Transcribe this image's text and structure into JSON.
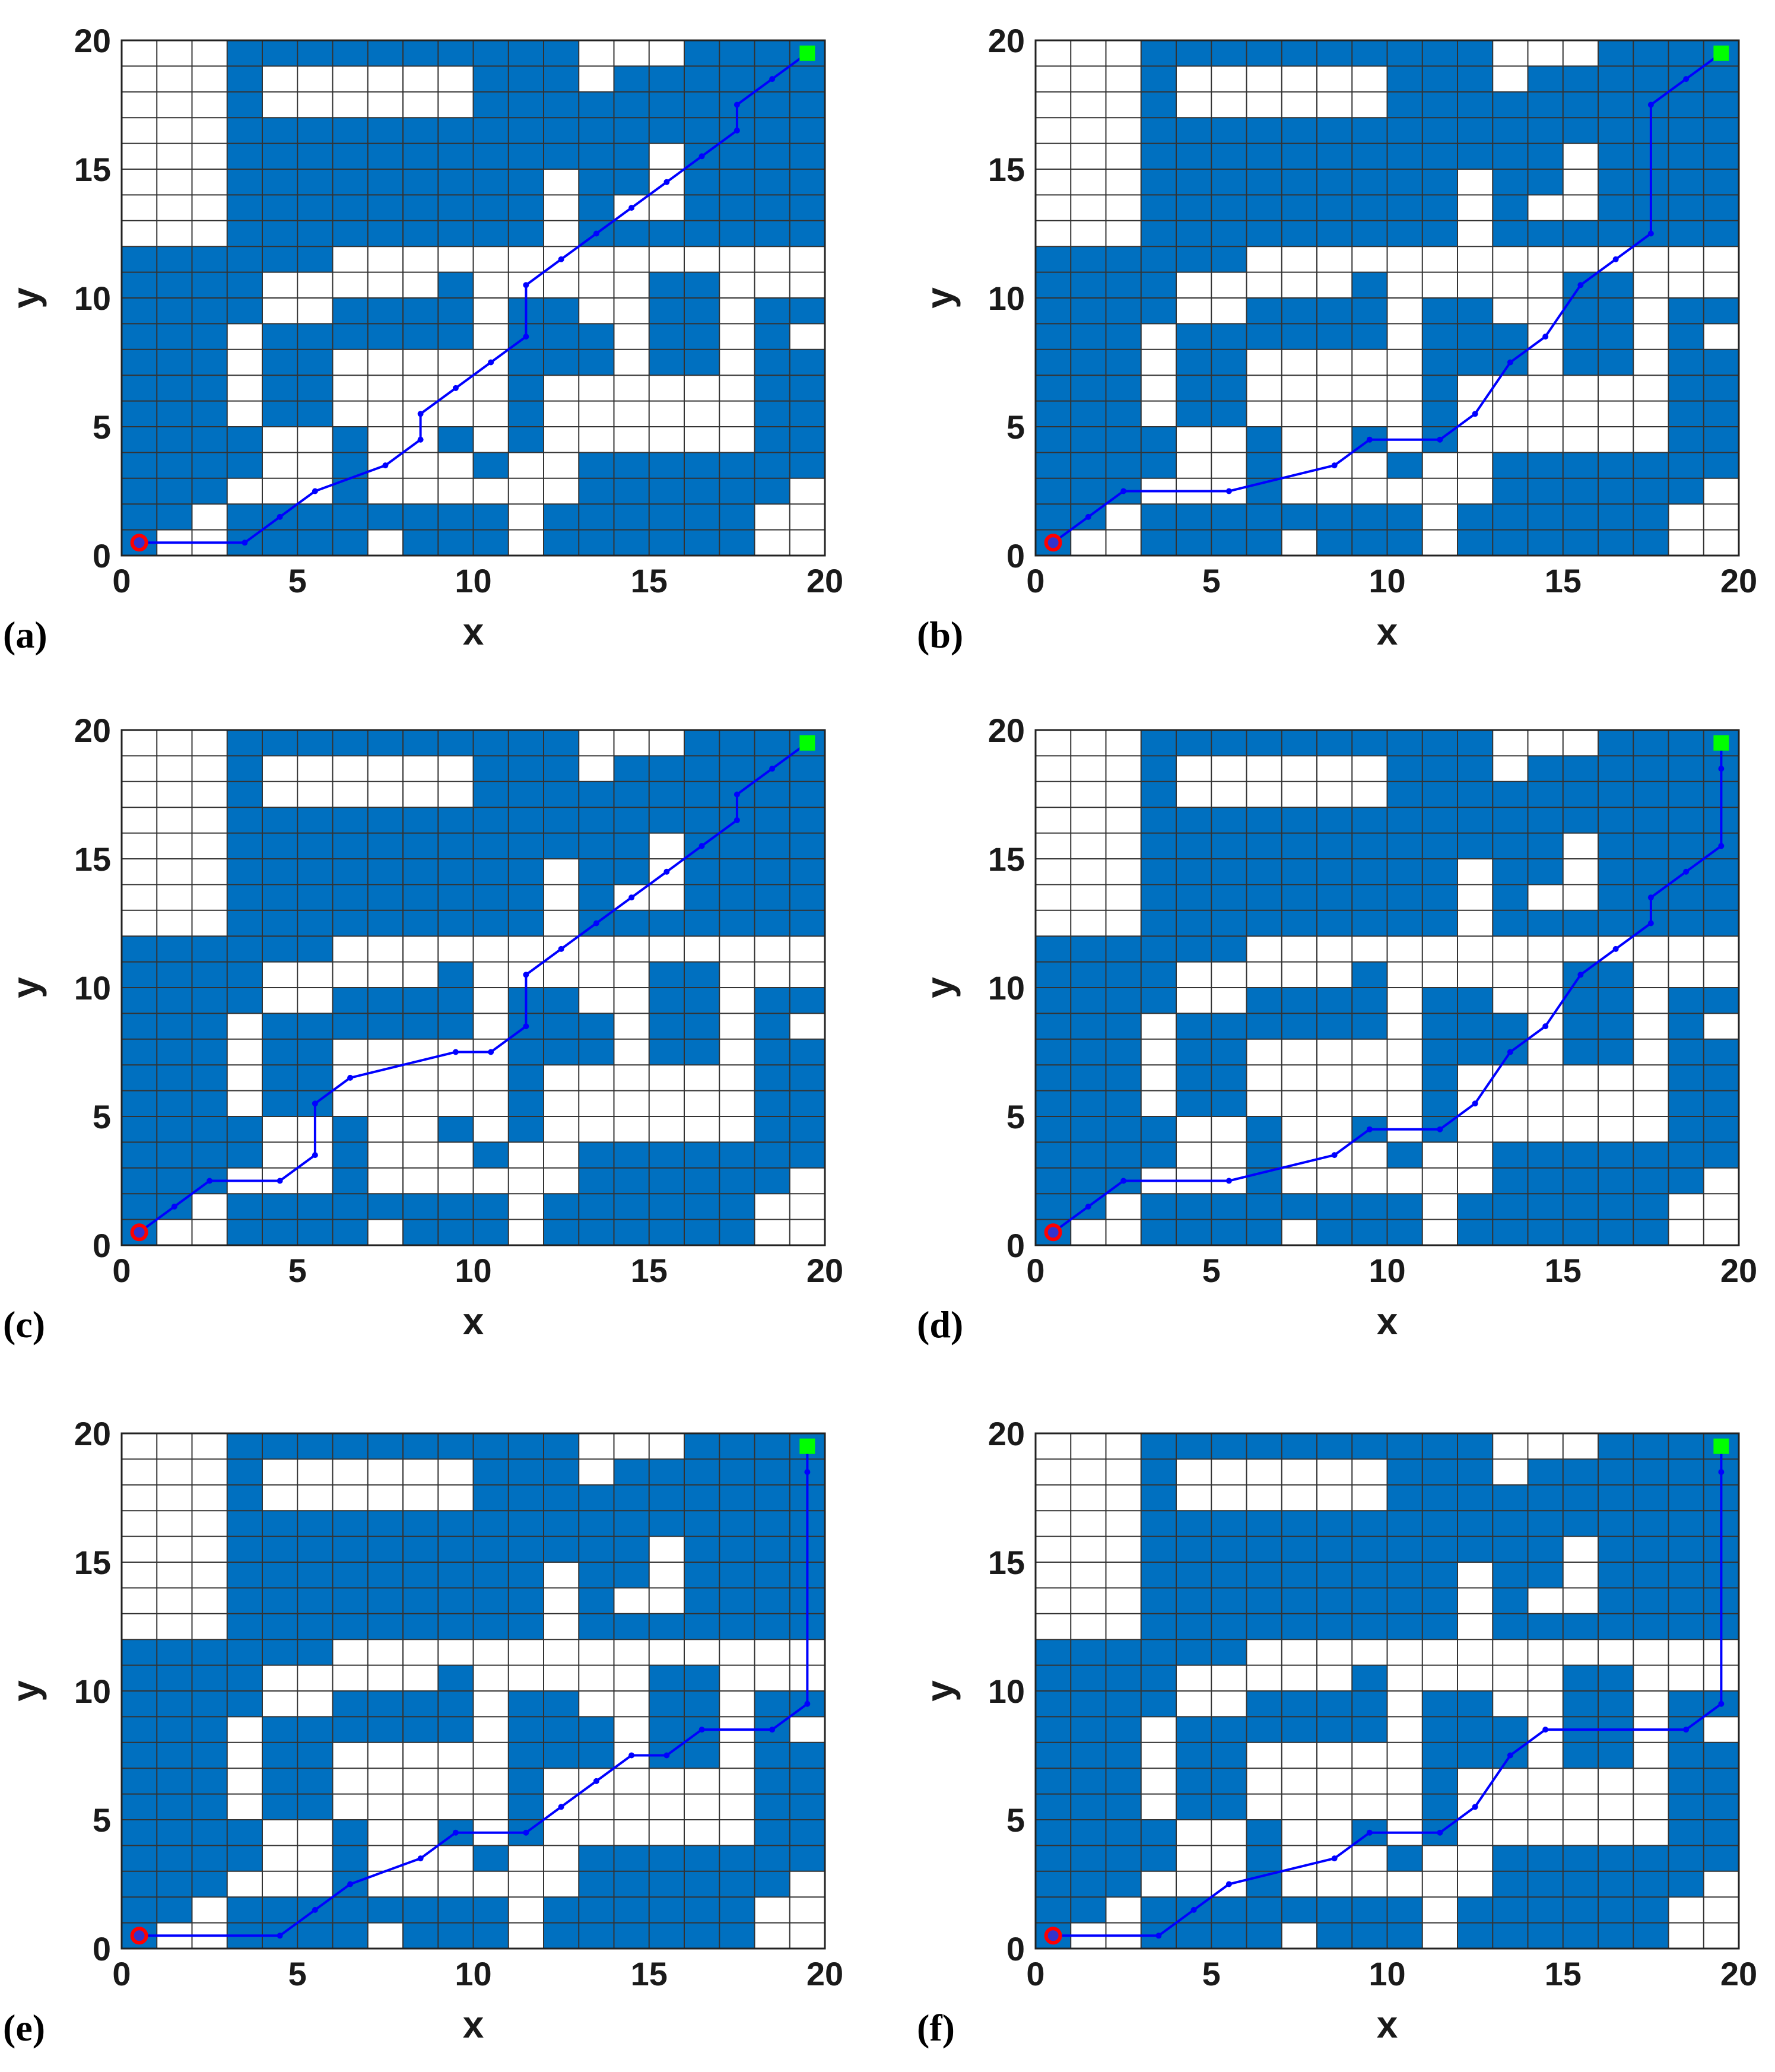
{
  "colors": {
    "obstacle": "#0070c0",
    "grid": "#333333",
    "path": "#0000ff",
    "start": "#ff0000",
    "start_fill": "#3333cc",
    "goal": "#00ff00",
    "background": "#ffffff"
  },
  "grid": {
    "obstacles": [
      [
        0,
        0
      ],
      [
        0,
        1
      ],
      [
        0,
        2
      ],
      [
        0,
        3
      ],
      [
        0,
        4
      ],
      [
        0,
        5
      ],
      [
        0,
        6
      ],
      [
        0,
        7
      ],
      [
        0,
        8
      ],
      [
        0,
        9
      ],
      [
        0,
        10
      ],
      [
        0,
        11
      ],
      [
        1,
        1
      ],
      [
        1,
        2
      ],
      [
        1,
        3
      ],
      [
        1,
        4
      ],
      [
        1,
        5
      ],
      [
        1,
        6
      ],
      [
        1,
        7
      ],
      [
        1,
        8
      ],
      [
        1,
        9
      ],
      [
        1,
        10
      ],
      [
        1,
        11
      ],
      [
        2,
        2
      ],
      [
        2,
        3
      ],
      [
        2,
        4
      ],
      [
        2,
        5
      ],
      [
        2,
        6
      ],
      [
        2,
        7
      ],
      [
        2,
        8
      ],
      [
        2,
        9
      ],
      [
        2,
        10
      ],
      [
        2,
        11
      ],
      [
        3,
        0
      ],
      [
        3,
        1
      ],
      [
        3,
        3
      ],
      [
        3,
        4
      ],
      [
        3,
        9
      ],
      [
        3,
        10
      ],
      [
        3,
        11
      ],
      [
        3,
        12
      ],
      [
        3,
        13
      ],
      [
        3,
        14
      ],
      [
        3,
        15
      ],
      [
        3,
        16
      ],
      [
        3,
        17
      ],
      [
        3,
        18
      ],
      [
        3,
        19
      ],
      [
        4,
        0
      ],
      [
        4,
        1
      ],
      [
        4,
        5
      ],
      [
        4,
        6
      ],
      [
        4,
        7
      ],
      [
        4,
        8
      ],
      [
        4,
        11
      ],
      [
        4,
        12
      ],
      [
        4,
        13
      ],
      [
        4,
        14
      ],
      [
        4,
        15
      ],
      [
        4,
        16
      ],
      [
        4,
        19
      ],
      [
        5,
        0
      ],
      [
        5,
        1
      ],
      [
        5,
        5
      ],
      [
        5,
        6
      ],
      [
        5,
        7
      ],
      [
        5,
        8
      ],
      [
        5,
        11
      ],
      [
        5,
        12
      ],
      [
        5,
        13
      ],
      [
        5,
        14
      ],
      [
        5,
        15
      ],
      [
        5,
        16
      ],
      [
        5,
        19
      ],
      [
        6,
        0
      ],
      [
        6,
        1
      ],
      [
        6,
        2
      ],
      [
        6,
        3
      ],
      [
        6,
        4
      ],
      [
        6,
        8
      ],
      [
        6,
        9
      ],
      [
        6,
        12
      ],
      [
        6,
        13
      ],
      [
        6,
        14
      ],
      [
        6,
        15
      ],
      [
        6,
        16
      ],
      [
        6,
        19
      ],
      [
        7,
        1
      ],
      [
        7,
        8
      ],
      [
        7,
        9
      ],
      [
        7,
        12
      ],
      [
        7,
        13
      ],
      [
        7,
        14
      ],
      [
        7,
        15
      ],
      [
        7,
        16
      ],
      [
        7,
        19
      ],
      [
        8,
        0
      ],
      [
        8,
        1
      ],
      [
        8,
        8
      ],
      [
        8,
        9
      ],
      [
        8,
        12
      ],
      [
        8,
        13
      ],
      [
        8,
        14
      ],
      [
        8,
        15
      ],
      [
        8,
        16
      ],
      [
        8,
        19
      ],
      [
        9,
        0
      ],
      [
        9,
        1
      ],
      [
        9,
        4
      ],
      [
        9,
        8
      ],
      [
        9,
        9
      ],
      [
        9,
        10
      ],
      [
        9,
        12
      ],
      [
        9,
        13
      ],
      [
        9,
        14
      ],
      [
        9,
        15
      ],
      [
        9,
        16
      ],
      [
        9,
        19
      ],
      [
        10,
        0
      ],
      [
        10,
        1
      ],
      [
        10,
        3
      ],
      [
        10,
        12
      ],
      [
        10,
        13
      ],
      [
        10,
        14
      ],
      [
        10,
        15
      ],
      [
        10,
        16
      ],
      [
        10,
        17
      ],
      [
        10,
        18
      ],
      [
        10,
        19
      ],
      [
        11,
        4
      ],
      [
        11,
        5
      ],
      [
        11,
        6
      ],
      [
        11,
        7
      ],
      [
        11,
        8
      ],
      [
        11,
        9
      ],
      [
        11,
        12
      ],
      [
        11,
        13
      ],
      [
        11,
        14
      ],
      [
        11,
        15
      ],
      [
        11,
        16
      ],
      [
        11,
        17
      ],
      [
        11,
        18
      ],
      [
        11,
        19
      ],
      [
        12,
        0
      ],
      [
        12,
        1
      ],
      [
        12,
        7
      ],
      [
        12,
        8
      ],
      [
        12,
        9
      ],
      [
        12,
        15
      ],
      [
        12,
        16
      ],
      [
        12,
        17
      ],
      [
        12,
        18
      ],
      [
        12,
        19
      ],
      [
        13,
        0
      ],
      [
        13,
        1
      ],
      [
        13,
        2
      ],
      [
        13,
        3
      ],
      [
        13,
        7
      ],
      [
        13,
        8
      ],
      [
        13,
        12
      ],
      [
        13,
        13
      ],
      [
        13,
        14
      ],
      [
        13,
        15
      ],
      [
        13,
        16
      ],
      [
        13,
        17
      ],
      [
        14,
        0
      ],
      [
        14,
        1
      ],
      [
        14,
        2
      ],
      [
        14,
        3
      ],
      [
        14,
        12
      ],
      [
        14,
        14
      ],
      [
        14,
        15
      ],
      [
        14,
        16
      ],
      [
        14,
        17
      ],
      [
        14,
        18
      ],
      [
        15,
        0
      ],
      [
        15,
        1
      ],
      [
        15,
        2
      ],
      [
        15,
        3
      ],
      [
        15,
        7
      ],
      [
        15,
        8
      ],
      [
        15,
        9
      ],
      [
        15,
        10
      ],
      [
        15,
        12
      ],
      [
        15,
        16
      ],
      [
        15,
        17
      ],
      [
        15,
        18
      ],
      [
        16,
        0
      ],
      [
        16,
        1
      ],
      [
        16,
        2
      ],
      [
        16,
        3
      ],
      [
        16,
        7
      ],
      [
        16,
        8
      ],
      [
        16,
        9
      ],
      [
        16,
        10
      ],
      [
        16,
        12
      ],
      [
        16,
        13
      ],
      [
        16,
        14
      ],
      [
        16,
        15
      ],
      [
        16,
        16
      ],
      [
        16,
        17
      ],
      [
        16,
        18
      ],
      [
        16,
        19
      ],
      [
        17,
        0
      ],
      [
        17,
        1
      ],
      [
        17,
        2
      ],
      [
        17,
        3
      ],
      [
        17,
        12
      ],
      [
        17,
        13
      ],
      [
        17,
        14
      ],
      [
        17,
        15
      ],
      [
        17,
        16
      ],
      [
        17,
        17
      ],
      [
        17,
        18
      ],
      [
        17,
        19
      ],
      [
        18,
        2
      ],
      [
        18,
        3
      ],
      [
        18,
        4
      ],
      [
        18,
        5
      ],
      [
        18,
        6
      ],
      [
        18,
        7
      ],
      [
        18,
        8
      ],
      [
        18,
        9
      ],
      [
        18,
        12
      ],
      [
        18,
        13
      ],
      [
        18,
        14
      ],
      [
        18,
        15
      ],
      [
        18,
        16
      ],
      [
        18,
        17
      ],
      [
        18,
        18
      ],
      [
        18,
        19
      ],
      [
        19,
        3
      ],
      [
        19,
        4
      ],
      [
        19,
        5
      ],
      [
        19,
        6
      ],
      [
        19,
        7
      ],
      [
        19,
        9
      ],
      [
        19,
        12
      ],
      [
        19,
        13
      ],
      [
        19,
        14
      ],
      [
        19,
        15
      ],
      [
        19,
        16
      ],
      [
        19,
        17
      ],
      [
        19,
        18
      ],
      [
        19,
        19
      ]
    ]
  },
  "chart_data": [
    {
      "type": "scatter",
      "panel_label": "(a)",
      "xlabel": "x",
      "ylabel": "y",
      "xlim": [
        0,
        20
      ],
      "ylim": [
        0,
        20
      ],
      "xticks": [
        "0",
        "5",
        "10",
        "15",
        "20"
      ],
      "yticks": [
        "0",
        "5",
        "10",
        "15",
        "20"
      ],
      "start": [
        0.5,
        0.5
      ],
      "goal": [
        19.5,
        19.5
      ],
      "path": [
        [
          0.5,
          0.5
        ],
        [
          3.5,
          0.5
        ],
        [
          4.5,
          1.5
        ],
        [
          5.5,
          2.5
        ],
        [
          7.5,
          3.5
        ],
        [
          8.5,
          4.5
        ],
        [
          8.5,
          5.5
        ],
        [
          9.5,
          6.5
        ],
        [
          10.5,
          7.5
        ],
        [
          11.5,
          8.5
        ],
        [
          11.5,
          10.5
        ],
        [
          12.5,
          11.5
        ],
        [
          13.5,
          12.5
        ],
        [
          14.5,
          13.5
        ],
        [
          15.5,
          14.5
        ],
        [
          16.5,
          15.5
        ],
        [
          17.5,
          16.5
        ],
        [
          17.5,
          17.5
        ],
        [
          18.5,
          18.5
        ],
        [
          19.5,
          19.5
        ]
      ]
    },
    {
      "type": "scatter",
      "panel_label": "(b)",
      "xlabel": "x",
      "ylabel": "y",
      "xlim": [
        0,
        20
      ],
      "ylim": [
        0,
        20
      ],
      "xticks": [
        "0",
        "5",
        "10",
        "15",
        "20"
      ],
      "yticks": [
        "0",
        "5",
        "10",
        "15",
        "20"
      ],
      "start": [
        0.5,
        0.5
      ],
      "goal": [
        19.5,
        19.5
      ],
      "path": [
        [
          0.5,
          0.5
        ],
        [
          1.5,
          1.5
        ],
        [
          2.5,
          2.5
        ],
        [
          5.5,
          2.5
        ],
        [
          8.5,
          3.5
        ],
        [
          9.5,
          4.5
        ],
        [
          11.5,
          4.5
        ],
        [
          12.5,
          5.5
        ],
        [
          13.5,
          7.5
        ],
        [
          14.5,
          8.5
        ],
        [
          15.5,
          10.5
        ],
        [
          16.5,
          11.5
        ],
        [
          17.5,
          12.5
        ],
        [
          17.5,
          17.5
        ],
        [
          18.5,
          18.5
        ],
        [
          19.5,
          19.5
        ]
      ]
    },
    {
      "type": "scatter",
      "panel_label": "(c)",
      "xlabel": "x",
      "ylabel": "y",
      "xlim": [
        0,
        20
      ],
      "ylim": [
        0,
        20
      ],
      "xticks": [
        "0",
        "5",
        "10",
        "15",
        "20"
      ],
      "yticks": [
        "0",
        "5",
        "10",
        "15",
        "20"
      ],
      "start": [
        0.5,
        0.5
      ],
      "goal": [
        19.5,
        19.5
      ],
      "path": [
        [
          0.5,
          0.5
        ],
        [
          1.5,
          1.5
        ],
        [
          2.5,
          2.5
        ],
        [
          4.5,
          2.5
        ],
        [
          5.5,
          3.5
        ],
        [
          5.5,
          5.5
        ],
        [
          6.5,
          6.5
        ],
        [
          9.5,
          7.5
        ],
        [
          10.5,
          7.5
        ],
        [
          11.5,
          8.5
        ],
        [
          11.5,
          10.5
        ],
        [
          12.5,
          11.5
        ],
        [
          13.5,
          12.5
        ],
        [
          14.5,
          13.5
        ],
        [
          15.5,
          14.5
        ],
        [
          16.5,
          15.5
        ],
        [
          17.5,
          16.5
        ],
        [
          17.5,
          17.5
        ],
        [
          18.5,
          18.5
        ],
        [
          19.5,
          19.5
        ]
      ]
    },
    {
      "type": "scatter",
      "panel_label": "(d)",
      "xlabel": "x",
      "ylabel": "y",
      "xlim": [
        0,
        20
      ],
      "ylim": [
        0,
        20
      ],
      "xticks": [
        "0",
        "5",
        "10",
        "15",
        "20"
      ],
      "yticks": [
        "0",
        "5",
        "10",
        "15",
        "20"
      ],
      "start": [
        0.5,
        0.5
      ],
      "goal": [
        19.5,
        19.5
      ],
      "path": [
        [
          0.5,
          0.5
        ],
        [
          1.5,
          1.5
        ],
        [
          2.5,
          2.5
        ],
        [
          5.5,
          2.5
        ],
        [
          8.5,
          3.5
        ],
        [
          9.5,
          4.5
        ],
        [
          11.5,
          4.5
        ],
        [
          12.5,
          5.5
        ],
        [
          13.5,
          7.5
        ],
        [
          14.5,
          8.5
        ],
        [
          15.5,
          10.5
        ],
        [
          16.5,
          11.5
        ],
        [
          17.5,
          12.5
        ],
        [
          17.5,
          13.5
        ],
        [
          18.5,
          14.5
        ],
        [
          19.5,
          15.5
        ],
        [
          19.5,
          18.5
        ],
        [
          19.5,
          19.5
        ]
      ]
    },
    {
      "type": "scatter",
      "panel_label": "(e)",
      "xlabel": "x",
      "ylabel": "y",
      "xlim": [
        0,
        20
      ],
      "ylim": [
        0,
        20
      ],
      "xticks": [
        "0",
        "5",
        "10",
        "15",
        "20"
      ],
      "yticks": [
        "0",
        "5",
        "10",
        "15",
        "20"
      ],
      "start": [
        0.5,
        0.5
      ],
      "goal": [
        19.5,
        19.5
      ],
      "path": [
        [
          0.5,
          0.5
        ],
        [
          4.5,
          0.5
        ],
        [
          5.5,
          1.5
        ],
        [
          6.5,
          2.5
        ],
        [
          8.5,
          3.5
        ],
        [
          9.5,
          4.5
        ],
        [
          11.5,
          4.5
        ],
        [
          12.5,
          5.5
        ],
        [
          13.5,
          6.5
        ],
        [
          14.5,
          7.5
        ],
        [
          15.5,
          7.5
        ],
        [
          16.5,
          8.5
        ],
        [
          18.5,
          8.5
        ],
        [
          19.5,
          9.5
        ],
        [
          19.5,
          18.5
        ],
        [
          19.5,
          19.5
        ]
      ]
    },
    {
      "type": "scatter",
      "panel_label": "(f)",
      "xlabel": "x",
      "ylabel": "y",
      "xlim": [
        0,
        20
      ],
      "ylim": [
        0,
        20
      ],
      "xticks": [
        "0",
        "5",
        "10",
        "15",
        "20"
      ],
      "yticks": [
        "0",
        "5",
        "10",
        "15",
        "20"
      ],
      "start": [
        0.5,
        0.5
      ],
      "goal": [
        19.5,
        19.5
      ],
      "path": [
        [
          0.5,
          0.5
        ],
        [
          3.5,
          0.5
        ],
        [
          4.5,
          1.5
        ],
        [
          5.5,
          2.5
        ],
        [
          8.5,
          3.5
        ],
        [
          9.5,
          4.5
        ],
        [
          11.5,
          4.5
        ],
        [
          12.5,
          5.5
        ],
        [
          13.5,
          7.5
        ],
        [
          14.5,
          8.5
        ],
        [
          18.5,
          8.5
        ],
        [
          19.5,
          9.5
        ],
        [
          19.5,
          18.5
        ],
        [
          19.5,
          19.5
        ]
      ]
    }
  ]
}
